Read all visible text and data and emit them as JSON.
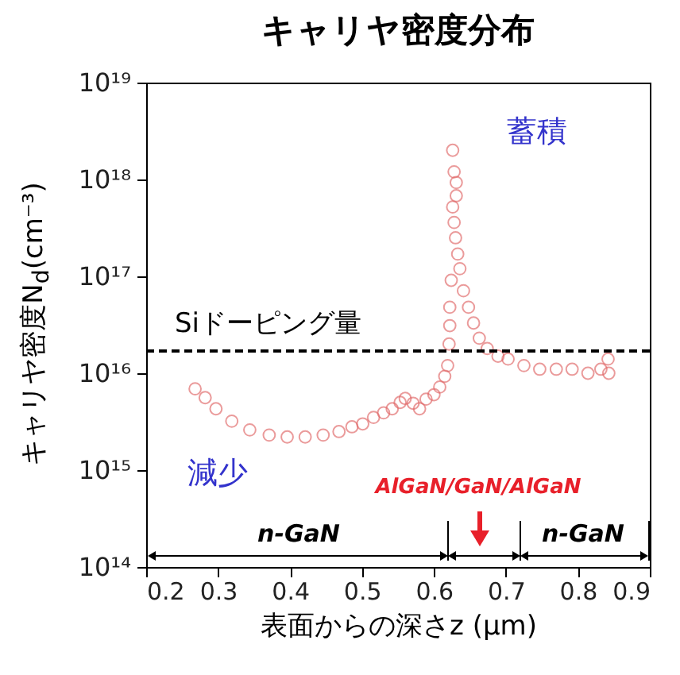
{
  "chart_data": {
    "type": "scatter",
    "title": "キャリヤ密度分布",
    "xlabel": "表面からの深さz (μm)",
    "ylabel": "キャリヤ密度N$_{d}$(cm⁻³)",
    "log": "y",
    "marker": "circle",
    "grid": false,
    "xlim": [
      0.2,
      0.9
    ],
    "xticks": [
      0.2,
      0.3,
      0.4,
      0.5,
      0.6,
      0.7,
      0.8,
      0.9
    ],
    "ylim": [
      100000000000000.0,
      1e+19
    ],
    "yticks": [
      {
        "value": 100000000000000.0,
        "label": "10¹⁴"
      },
      {
        "value": 1000000000000000.0,
        "label": "10¹⁵"
      },
      {
        "value": 1e+16,
        "label": "10¹⁶"
      },
      {
        "value": 1e+17,
        "label": "10¹⁷"
      },
      {
        "value": 1e+18,
        "label": "10¹⁸"
      },
      {
        "value": 1e+19,
        "label": "10¹⁹"
      }
    ],
    "series": [
      {
        "color": "#e06666",
        "x": [
          0.268,
          0.282,
          0.297,
          0.319,
          0.344,
          0.371,
          0.396,
          0.421,
          0.446,
          0.468,
          0.486,
          0.501,
          0.516,
          0.53,
          0.542,
          0.553,
          0.56,
          0.571,
          0.58,
          0.589,
          0.6,
          0.608,
          0.615,
          0.619,
          0.621,
          0.622,
          0.622,
          0.624,
          0.626,
          0.628,
          0.631,
          0.631,
          0.626,
          0.628,
          0.63,
          0.633,
          0.636,
          0.641,
          0.648,
          0.655,
          0.663,
          0.674,
          0.689,
          0.703,
          0.725,
          0.747,
          0.77,
          0.792,
          0.814,
          0.832,
          0.842,
          0.843
        ],
        "values": [
          6900000000000000.0,
          5600000000000000.0,
          4300000000000000.0,
          3200000000000000.0,
          2600000000000000.0,
          2300000000000000.0,
          2200000000000000.0,
          2200000000000000.0,
          2300000000000000.0,
          2500000000000000.0,
          2800000000000000.0,
          3000000000000000.0,
          3500000000000000.0,
          3900000000000000.0,
          4300000000000000.0,
          5000000000000000.0,
          5500000000000000.0,
          4900000000000000.0,
          4300000000000000.0,
          5400000000000000.0,
          6000000000000000.0,
          7200000000000000.0,
          9300000000000000.0,
          1.2e+16,
          2e+16,
          3.1e+16,
          4.8e+16,
          9.1e+16,
          2e+18,
          1.2e+18,
          9.3e+17,
          6.8e+17,
          5.2e+17,
          3.6e+17,
          2.5e+17,
          1.7e+17,
          1.2e+17,
          7.1e+16,
          4.8e+16,
          3.3e+16,
          2.3e+16,
          1.8e+16,
          1.5e+16,
          1.4e+16,
          1.2e+16,
          1.1e+16,
          1.1e+16,
          1.1e+16,
          1e+16,
          1.1e+16,
          1.4e+16,
          1e+16
        ]
      }
    ],
    "ref_lines": [
      {
        "axis": "y",
        "value": 1.7e+16,
        "label": "Siドーピング量",
        "color": "#000000",
        "line_style": "dashed"
      }
    ],
    "annotations": [
      "蓄積",
      "減少",
      "AlGaN/GaN/AlGaN",
      "n-GaN",
      "n-GaN"
    ]
  }
}
